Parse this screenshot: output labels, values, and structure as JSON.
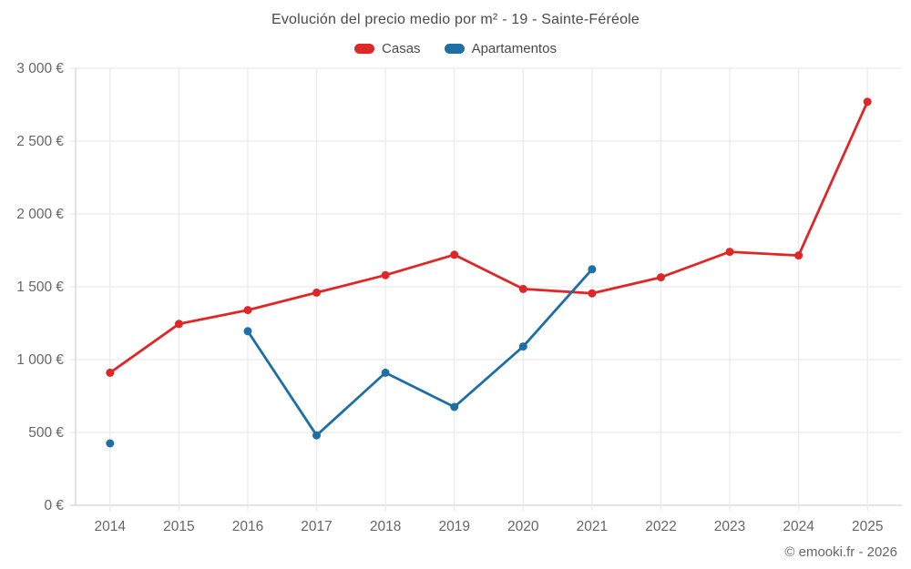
{
  "title": "Evolución del precio medio por m² - 19 - Sainte-Féréole",
  "attribution": "© emooki.fr - 2026",
  "colors": {
    "casas": "#e02727",
    "apartamentos": "#1d6fa5",
    "grid": "#ebebeb",
    "spine": "#d4d4d4",
    "title_text": "#4a4a4a",
    "tick_text": "#666666",
    "attribution_text": "#666666",
    "background": "#ffffff"
  },
  "chart_data": {
    "type": "line",
    "title": "Evolución del precio medio por m² - 19 - Sainte-Féréole",
    "categories": [
      "2014",
      "2015",
      "2016",
      "2017",
      "2018",
      "2019",
      "2020",
      "2021",
      "2022",
      "2023",
      "2024",
      "2025"
    ],
    "series": [
      {
        "name": "Casas",
        "color": "#e02727",
        "values": [
          910,
          1245,
          1340,
          1460,
          1580,
          1720,
          1485,
          1455,
          1565,
          1740,
          1715,
          2770
        ]
      },
      {
        "name": "Apartamentos",
        "color": "#1d6fa5",
        "values": [
          425,
          null,
          1195,
          480,
          910,
          675,
          1090,
          1620,
          null,
          null,
          null,
          null
        ]
      }
    ],
    "xlabel": "",
    "ylabel": "",
    "ylim": [
      0,
      3000
    ],
    "ytick_step": 500,
    "ytick_labels": [
      "0 €",
      "500 €",
      "1 000 €",
      "1 500 €",
      "2 000 €",
      "2 500 €",
      "3 000 €"
    ],
    "grid": true,
    "legend_position": "top",
    "currency": "€"
  }
}
